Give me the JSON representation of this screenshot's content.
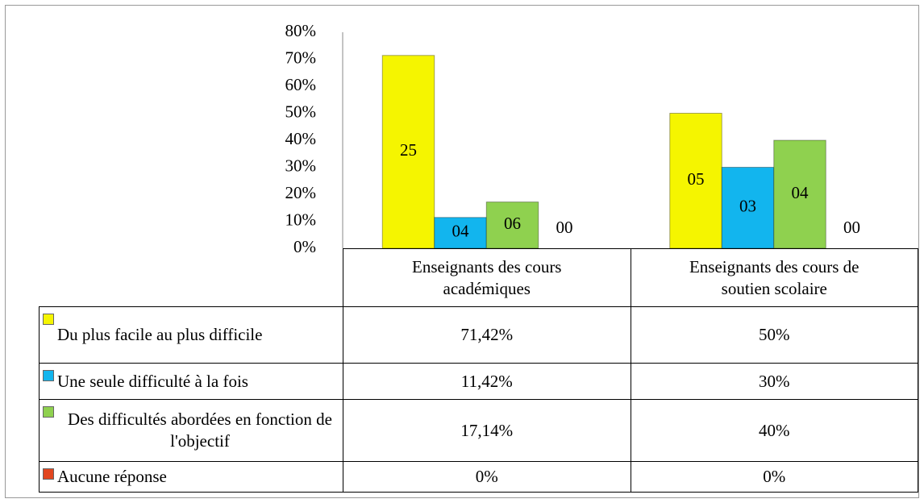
{
  "chart_data": {
    "type": "bar",
    "categories": [
      "Enseignants des cours académiques",
      "Enseignants des cours de soutien scolaire"
    ],
    "series": [
      {
        "name": "Du plus facile au plus difficile",
        "color": "#f5f500",
        "values": [
          71.42,
          50
        ],
        "value_labels": [
          "71,42%",
          "50%"
        ],
        "counts": [
          25,
          5
        ],
        "count_labels": [
          "25",
          "05"
        ]
      },
      {
        "name": "Une seule difficulté à la fois",
        "color": "#12b5ee",
        "values": [
          11.42,
          30
        ],
        "value_labels": [
          "11,42%",
          "30%"
        ],
        "counts": [
          4,
          3
        ],
        "count_labels": [
          "04",
          "03"
        ]
      },
      {
        "name": "Des difficultés abordées en fonction de l'objectif",
        "color": "#8fd14f",
        "values": [
          17.14,
          40
        ],
        "value_labels": [
          "17,14%",
          "40%"
        ],
        "counts": [
          6,
          4
        ],
        "count_labels": [
          "06",
          "04"
        ]
      },
      {
        "name": "Aucune réponse",
        "color": "#e2461f",
        "values": [
          0,
          0
        ],
        "value_labels": [
          "0%",
          "0%"
        ],
        "counts": [
          0,
          0
        ],
        "count_labels": [
          "00",
          "00"
        ]
      }
    ],
    "ylim": [
      0,
      80
    ],
    "yticks": [
      {
        "value": 0,
        "label": "0%"
      },
      {
        "value": 10,
        "label": "10%"
      },
      {
        "value": 20,
        "label": "20%"
      },
      {
        "value": 30,
        "label": "30%"
      },
      {
        "value": 40,
        "label": "40%"
      },
      {
        "value": 50,
        "label": "50%"
      },
      {
        "value": 60,
        "label": "60%"
      },
      {
        "value": 70,
        "label": "70%"
      },
      {
        "value": 80,
        "label": "80%"
      }
    ],
    "grid": false,
    "data_table": true
  }
}
